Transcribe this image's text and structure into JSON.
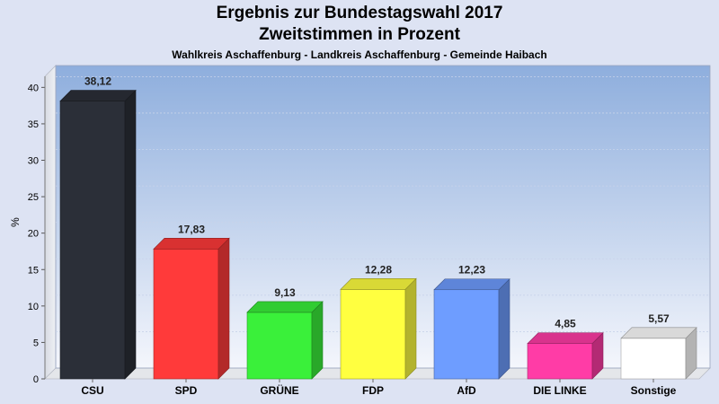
{
  "chart_data": {
    "type": "bar",
    "title": "Ergebnis zur Bundestagswahl 2017",
    "subtitle": "Zweitstimmen in Prozent",
    "caption": "Wahlkreis Aschaffenburg - Landkreis Aschaffenburg - Gemeinde Haibach",
    "ylabel": "%",
    "xlabel": "",
    "ylim": [
      0,
      43
    ],
    "yticks": [
      0,
      5,
      10,
      15,
      20,
      25,
      30,
      35,
      40
    ],
    "grid": true,
    "categories": [
      "CSU",
      "SPD",
      "GRÜNE",
      "FDP",
      "AfD",
      "DIE LINKE",
      "Sonstige"
    ],
    "values": [
      38.12,
      17.83,
      9.13,
      12.28,
      12.23,
      4.85,
      5.57
    ],
    "value_labels": [
      "38,12",
      "17,83",
      "9,13",
      "12,28",
      "12,23",
      "4,85",
      "5,57"
    ],
    "colors": [
      "#2b2f38",
      "#ff3a3a",
      "#3af03a",
      "#ffff40",
      "#6e9dff",
      "#ff3ca6",
      "#ffffff"
    ]
  }
}
